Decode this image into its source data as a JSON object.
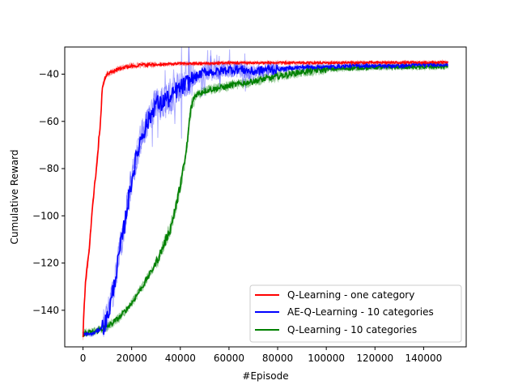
{
  "chart_data": {
    "type": "line",
    "title": "",
    "xlabel": "#Episode",
    "ylabel": "Cumulative Reward",
    "xlim": [
      -7500,
      157500
    ],
    "ylim": [
      -155.5,
      -28.5
    ],
    "x_ticks": [
      0,
      20000,
      40000,
      60000,
      80000,
      100000,
      120000,
      140000
    ],
    "x_tick_labels": [
      "0",
      "20000",
      "40000",
      "60000",
      "80000",
      "100000",
      "120000",
      "140000"
    ],
    "y_ticks": [
      -140,
      -120,
      -100,
      -80,
      -60,
      -40
    ],
    "y_tick_labels": [
      "−140",
      "−120",
      "−100",
      "−80",
      "−60",
      "−40"
    ],
    "grid": false,
    "legend_position": "lower-right",
    "series": [
      {
        "name": "Q-Learning - one category",
        "color": "#ff0000",
        "x": [
          0,
          1000,
          2000,
          3000,
          4000,
          5000,
          6000,
          7000,
          8000,
          9000,
          10000,
          12000,
          15000,
          20000,
          25000,
          30000,
          40000,
          50000,
          60000,
          80000,
          100000,
          120000,
          140000,
          150000
        ],
        "y": [
          -150,
          -128,
          -120,
          -108,
          -95,
          -85,
          -74,
          -62,
          -45,
          -42,
          -40,
          -39,
          -37.5,
          -36.5,
          -36,
          -36,
          -35.5,
          -35.5,
          -35.2,
          -35.2,
          -35.2,
          -35.1,
          -35.1,
          -35.0
        ]
      },
      {
        "name": "AE-Q-Learning - 10 categories",
        "color": "#0000ff",
        "x": [
          0,
          4000,
          7000,
          9000,
          10000,
          11000,
          12000,
          13000,
          14000,
          15000,
          16000,
          17000,
          18000,
          19000,
          20000,
          22000,
          24000,
          26000,
          28000,
          30000,
          32000,
          34000,
          36000,
          38000,
          40000,
          45000,
          50000,
          55000,
          60000,
          65000,
          70000,
          75000,
          80000,
          90000,
          100000,
          110000,
          120000,
          130000,
          140000,
          150000
        ],
        "y": [
          -150,
          -150,
          -148,
          -146,
          -143,
          -139,
          -134,
          -128,
          -122,
          -116,
          -110,
          -104,
          -97,
          -91,
          -85,
          -75,
          -66,
          -62,
          -57,
          -52,
          -53,
          -50,
          -51,
          -47,
          -46,
          -42,
          -39,
          -39,
          -38,
          -38,
          -39,
          -38,
          -38,
          -37,
          -37,
          -36.5,
          -36.5,
          -36.5,
          -36,
          -36
        ]
      },
      {
        "name": "Q-Learning - 10 categories",
        "color": "#008000",
        "x": [
          0,
          5000,
          10000,
          15000,
          20000,
          25000,
          30000,
          33000,
          36000,
          38000,
          40000,
          42000,
          43000,
          44000,
          45000,
          46000,
          48000,
          50000,
          55000,
          60000,
          65000,
          70000,
          75000,
          80000,
          85000,
          90000,
          95000,
          100000,
          110000,
          120000,
          130000,
          140000,
          150000
        ],
        "y": [
          -150,
          -149,
          -147,
          -143,
          -137,
          -129,
          -120,
          -113,
          -105,
          -97,
          -87,
          -76,
          -68,
          -57,
          -52,
          -49,
          -48,
          -47,
          -46,
          -45,
          -44,
          -43,
          -42,
          -41,
          -40,
          -39,
          -38.5,
          -38,
          -37.5,
          -37.2,
          -37,
          -37,
          -36.8
        ]
      }
    ]
  }
}
